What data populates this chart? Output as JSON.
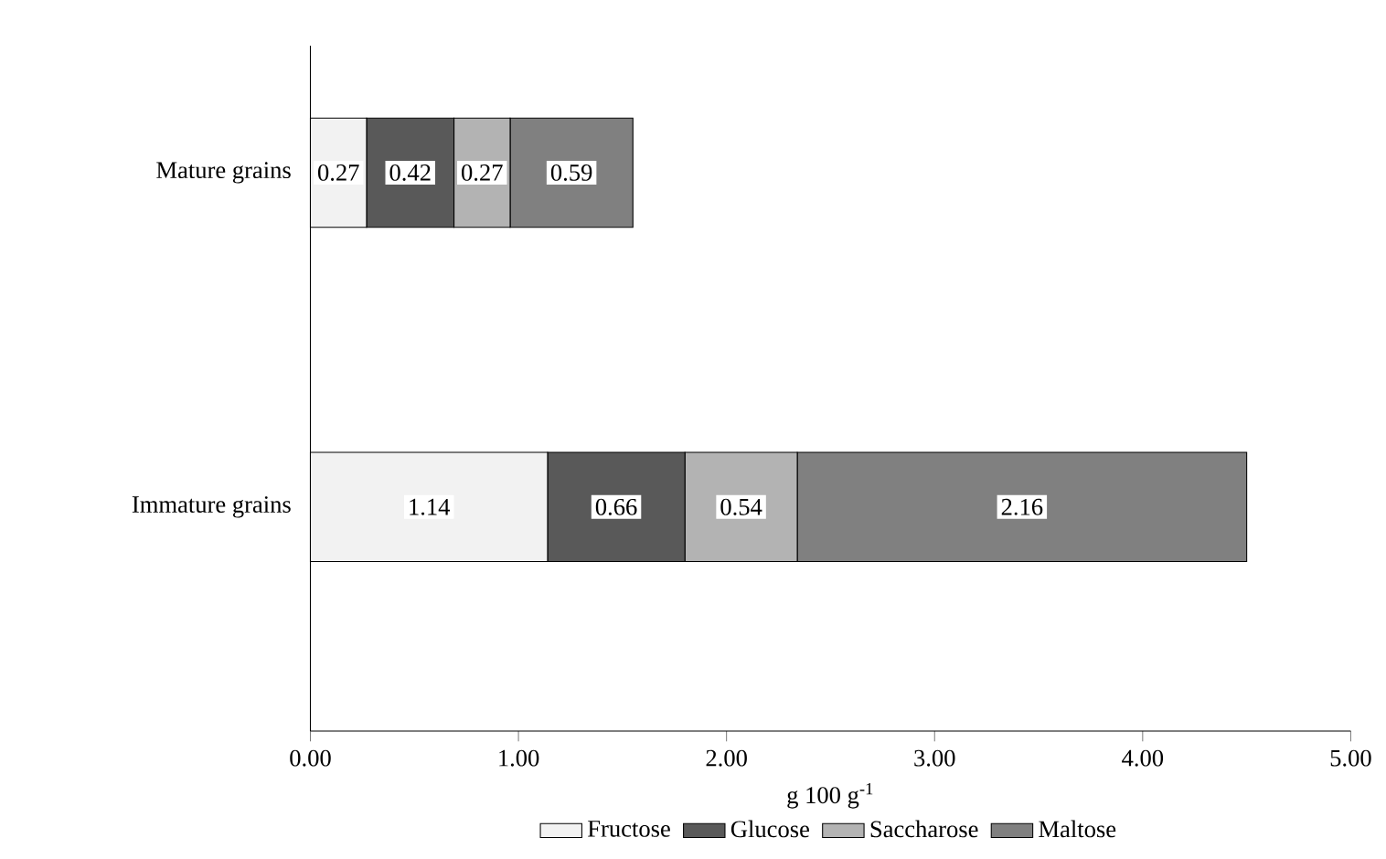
{
  "chart_data": {
    "type": "bar",
    "orientation": "horizontal",
    "stacked": true,
    "data_labels": true,
    "legend": "bottom",
    "categories": [
      "Mature grains",
      "Immature grains"
    ],
    "series": [
      {
        "name": "Fructose",
        "color": "#f2f2f2",
        "values": [
          0.27,
          1.14
        ]
      },
      {
        "name": "Glucose",
        "color": "#595959",
        "values": [
          0.42,
          0.66
        ]
      },
      {
        "name": "Saccharose",
        "color": "#b3b3b3",
        "values": [
          0.27,
          0.54
        ]
      },
      {
        "name": "Maltose",
        "color": "#808080",
        "values": [
          0.59,
          2.16
        ]
      }
    ],
    "xlim": [
      0,
      5
    ],
    "xticks": [
      {
        "value": 0,
        "label": "0.00"
      },
      {
        "value": 1,
        "label": "1.00"
      },
      {
        "value": 2,
        "label": "2.00"
      },
      {
        "value": 3,
        "label": "3.00"
      },
      {
        "value": 4,
        "label": "4.00"
      },
      {
        "value": 5,
        "label": "5.00"
      }
    ],
    "xlabel": "g 100 g$^{-1}$"
  }
}
